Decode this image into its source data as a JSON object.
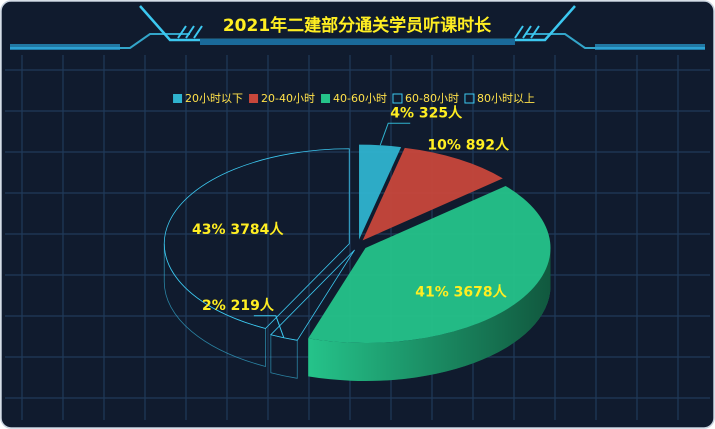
{
  "chart_data": {
    "type": "pie3d",
    "title": "2021年二建部分通关学员听课时长",
    "categories": [
      "20小时以下",
      "20-40小时",
      "40-60小时",
      "60-80小时",
      "80小时以上"
    ],
    "values": [
      325,
      892,
      3678,
      219,
      3784
    ],
    "value_labels": [
      "4% 325人",
      "10% 892人",
      "41% 3678人",
      "2% 219人",
      "43% 3784人"
    ],
    "colors": [
      "#2fb3cf",
      "#c8473b",
      "#25c38a",
      "none",
      "none"
    ],
    "legend": "top"
  }
}
